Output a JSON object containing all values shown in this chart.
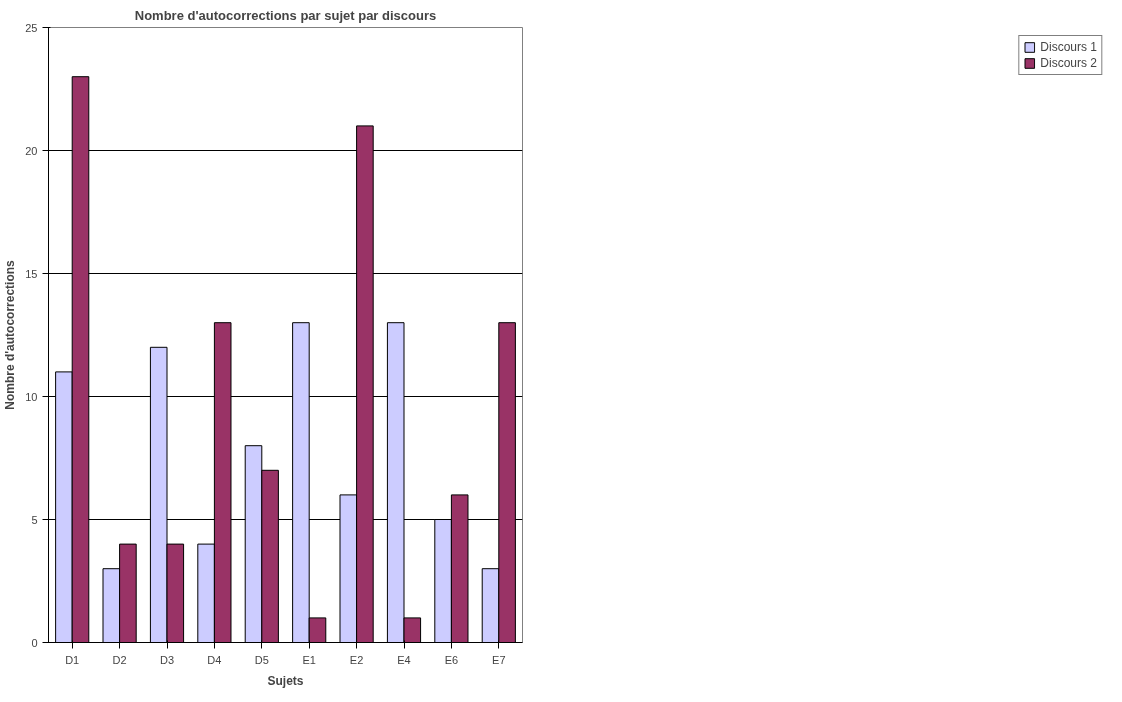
{
  "chart_data": {
    "type": "bar",
    "title": "Nombre d'autocorrections par sujet par discours",
    "xlabel": "Sujets",
    "ylabel": "Nombre d'autocorrections",
    "categories": [
      "D1",
      "D2",
      "D3",
      "D4",
      "D5",
      "E1",
      "E2",
      "E4",
      "E6",
      "E7"
    ],
    "series": [
      {
        "name": "Discours 1",
        "color": "#ccccff",
        "values": [
          11,
          3,
          12,
          4,
          8,
          13,
          6,
          13,
          5,
          3
        ]
      },
      {
        "name": "Discours 2",
        "color": "#993366",
        "values": [
          23,
          4,
          4,
          13,
          7,
          1,
          21,
          1,
          6,
          13
        ]
      }
    ],
    "ylim": [
      0,
      25
    ],
    "yticks": [
      0,
      5,
      10,
      15,
      20,
      25
    ],
    "grid": "y",
    "legend": "right"
  }
}
